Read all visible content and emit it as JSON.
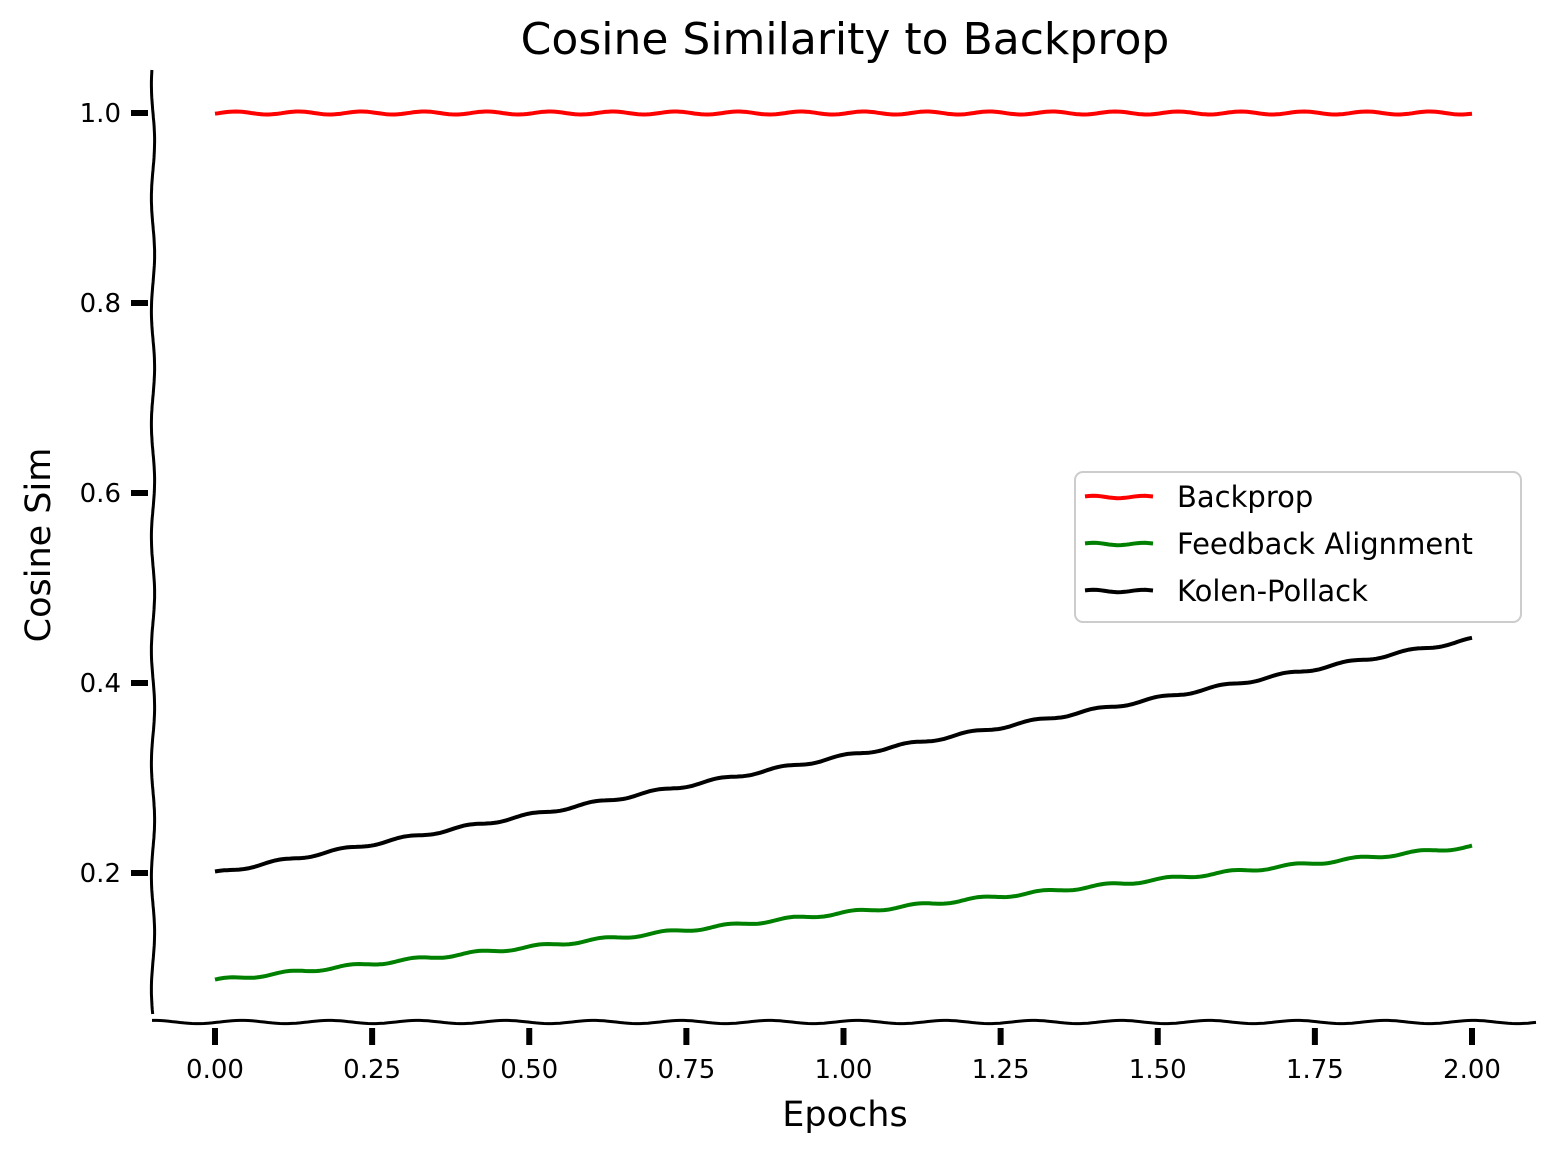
{
  "chart_data": {
    "type": "line",
    "title": "Cosine Similarity to Backprop",
    "xlabel": "Epochs",
    "ylabel": "Cosine Sim",
    "xlim": [
      -0.1,
      2.1
    ],
    "ylim": [
      0.045,
      1.045
    ],
    "x_ticks": [
      "0.00",
      "0.25",
      "0.50",
      "0.75",
      "1.00",
      "1.25",
      "1.50",
      "1.75",
      "2.00"
    ],
    "y_ticks": [
      "0.2",
      "0.4",
      "0.6",
      "0.8",
      "1.0"
    ],
    "grid": false,
    "legend_position": "center-right",
    "series": [
      {
        "name": "Backprop",
        "color": "#ff0000",
        "x": [
          0,
          2
        ],
        "y": [
          1.0,
          1.0
        ]
      },
      {
        "name": "Feedback Alignment",
        "color": "#008000",
        "x": [
          0,
          0.5,
          1.0,
          1.5,
          2.0
        ],
        "y": [
          0.087,
          0.122,
          0.158,
          0.193,
          0.228
        ]
      },
      {
        "name": "Kolen-Pollack",
        "color": "#000000",
        "x": [
          0,
          0.5,
          1.0,
          1.5,
          2.0
        ],
        "y": [
          0.2,
          0.261,
          0.323,
          0.384,
          0.446
        ]
      }
    ]
  }
}
